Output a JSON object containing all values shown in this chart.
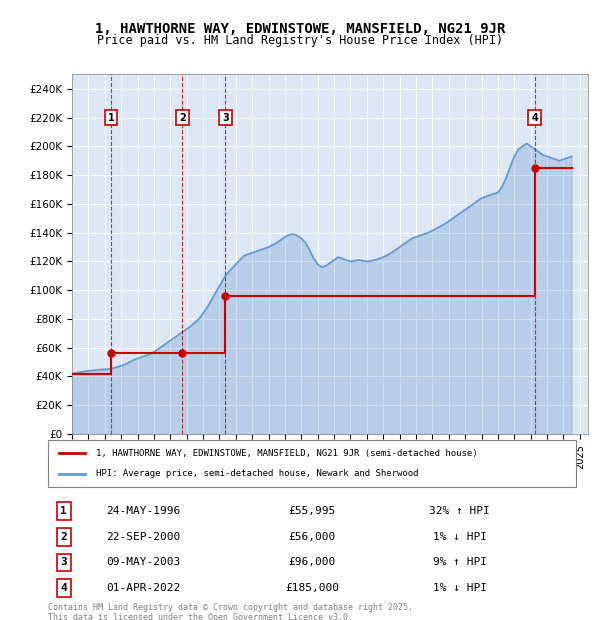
{
  "title": "1, HAWTHORNE WAY, EDWINSTOWE, MANSFIELD, NG21 9JR",
  "subtitle": "Price paid vs. HM Land Registry's House Price Index (HPI)",
  "ylim": [
    0,
    250000
  ],
  "yticks": [
    0,
    20000,
    40000,
    60000,
    80000,
    100000,
    120000,
    140000,
    160000,
    180000,
    200000,
    220000,
    240000
  ],
  "ytick_labels": [
    "£0",
    "£20K",
    "£40K",
    "£60K",
    "£80K",
    "£100K",
    "£120K",
    "£140K",
    "£160K",
    "£180K",
    "£200K",
    "£220K",
    "£240K"
  ],
  "hpi_color": "#6699cc",
  "price_color": "#cc0000",
  "background_color": "#dce6f5",
  "sale_color": "#cc0000",
  "purchases": [
    {
      "num": 1,
      "date_x": 1996.39,
      "price": 55995,
      "label": "1",
      "pct": "32%",
      "dir": "↑"
    },
    {
      "num": 2,
      "date_x": 2000.73,
      "price": 56000,
      "label": "2",
      "pct": "1%",
      "dir": "↓"
    },
    {
      "num": 3,
      "date_x": 2003.36,
      "price": 96000,
      "label": "3",
      "pct": "9%",
      "dir": "↑"
    },
    {
      "num": 4,
      "date_x": 2022.25,
      "price": 185000,
      "label": "4",
      "pct": "1%",
      "dir": "↓"
    }
  ],
  "purchase_dates_text": [
    "24-MAY-1996",
    "22-SEP-2000",
    "09-MAY-2003",
    "01-APR-2022"
  ],
  "purchase_prices_text": [
    "£55,995",
    "£56,000",
    "£96,000",
    "£185,000"
  ],
  "purchase_pct_text": [
    "32% ↑ HPI",
    "1% ↓ HPI",
    "9% ↑ HPI",
    "1% ↓ HPI"
  ],
  "legend_line1": "1, HAWTHORNE WAY, EDWINSTOWE, MANSFIELD, NG21 9JR (semi-detached house)",
  "legend_line2": "HPI: Average price, semi-detached house, Newark and Sherwood",
  "footer": "Contains HM Land Registry data © Crown copyright and database right 2025.\nThis data is licensed under the Open Government Licence v3.0.",
  "hpi_years": [
    1994.0,
    1994.25,
    1994.5,
    1994.75,
    1995.0,
    1995.25,
    1995.5,
    1995.75,
    1996.0,
    1996.25,
    1996.5,
    1996.75,
    1997.0,
    1997.25,
    1997.5,
    1997.75,
    1998.0,
    1998.25,
    1998.5,
    1998.75,
    1999.0,
    1999.25,
    1999.5,
    1999.75,
    2000.0,
    2000.25,
    2000.5,
    2000.75,
    2001.0,
    2001.25,
    2001.5,
    2001.75,
    2002.0,
    2002.25,
    2002.5,
    2002.75,
    2003.0,
    2003.25,
    2003.5,
    2003.75,
    2004.0,
    2004.25,
    2004.5,
    2004.75,
    2005.0,
    2005.25,
    2005.5,
    2005.75,
    2006.0,
    2006.25,
    2006.5,
    2006.75,
    2007.0,
    2007.25,
    2007.5,
    2007.75,
    2008.0,
    2008.25,
    2008.5,
    2008.75,
    2009.0,
    2009.25,
    2009.5,
    2009.75,
    2010.0,
    2010.25,
    2010.5,
    2010.75,
    2011.0,
    2011.25,
    2011.5,
    2011.75,
    2012.0,
    2012.25,
    2012.5,
    2012.75,
    2013.0,
    2013.25,
    2013.5,
    2013.75,
    2014.0,
    2014.25,
    2014.5,
    2014.75,
    2015.0,
    2015.25,
    2015.5,
    2015.75,
    2016.0,
    2016.25,
    2016.5,
    2016.75,
    2017.0,
    2017.25,
    2017.5,
    2017.75,
    2018.0,
    2018.25,
    2018.5,
    2018.75,
    2019.0,
    2019.25,
    2019.5,
    2019.75,
    2020.0,
    2020.25,
    2020.5,
    2020.75,
    2021.0,
    2021.25,
    2021.5,
    2021.75,
    2022.0,
    2022.25,
    2022.5,
    2022.75,
    2023.0,
    2023.25,
    2023.5,
    2023.75,
    2024.0,
    2024.25,
    2024.5
  ],
  "hpi_values": [
    42000,
    42500,
    43000,
    43500,
    44000,
    44200,
    44500,
    44800,
    45000,
    45200,
    45800,
    46500,
    47500,
    48500,
    50000,
    51500,
    52500,
    53500,
    54500,
    55500,
    57000,
    59000,
    61000,
    63000,
    65000,
    67000,
    69000,
    71000,
    73000,
    75000,
    77500,
    80000,
    84000,
    88000,
    93000,
    98000,
    103000,
    108000,
    112000,
    115000,
    118000,
    121000,
    124000,
    125000,
    126000,
    127000,
    128000,
    129000,
    130000,
    131500,
    133000,
    135000,
    137000,
    138500,
    139000,
    138000,
    136000,
    133000,
    128000,
    122000,
    118000,
    116000,
    117000,
    119000,
    121000,
    123000,
    122000,
    121000,
    120000,
    120500,
    121000,
    120500,
    120000,
    120500,
    121000,
    122000,
    123000,
    124500,
    126000,
    128000,
    130000,
    132000,
    134000,
    136000,
    137000,
    138000,
    139000,
    140000,
    141500,
    143000,
    144500,
    146000,
    148000,
    150000,
    152000,
    154000,
    156000,
    158000,
    160000,
    162000,
    164000,
    165000,
    166000,
    167000,
    168000,
    172000,
    178000,
    186000,
    193000,
    198000,
    200000,
    202000,
    200000,
    198000,
    196000,
    194000,
    193000,
    192000,
    191000,
    190000,
    191000,
    192000,
    193000
  ],
  "price_years": [
    1994.0,
    1996.39,
    1996.39,
    2000.73,
    2000.73,
    2003.36,
    2003.36,
    2022.25,
    2022.25,
    2024.5
  ],
  "price_values": [
    42000,
    42000,
    55995,
    55995,
    56000,
    56000,
    96000,
    96000,
    185000,
    185000
  ],
  "xlim": [
    1994.0,
    2025.5
  ],
  "xticks": [
    1994,
    1995,
    1996,
    1997,
    1998,
    1999,
    2000,
    2001,
    2002,
    2003,
    2004,
    2005,
    2006,
    2007,
    2008,
    2009,
    2010,
    2011,
    2012,
    2013,
    2014,
    2015,
    2016,
    2017,
    2018,
    2019,
    2020,
    2021,
    2022,
    2023,
    2024,
    2025
  ]
}
